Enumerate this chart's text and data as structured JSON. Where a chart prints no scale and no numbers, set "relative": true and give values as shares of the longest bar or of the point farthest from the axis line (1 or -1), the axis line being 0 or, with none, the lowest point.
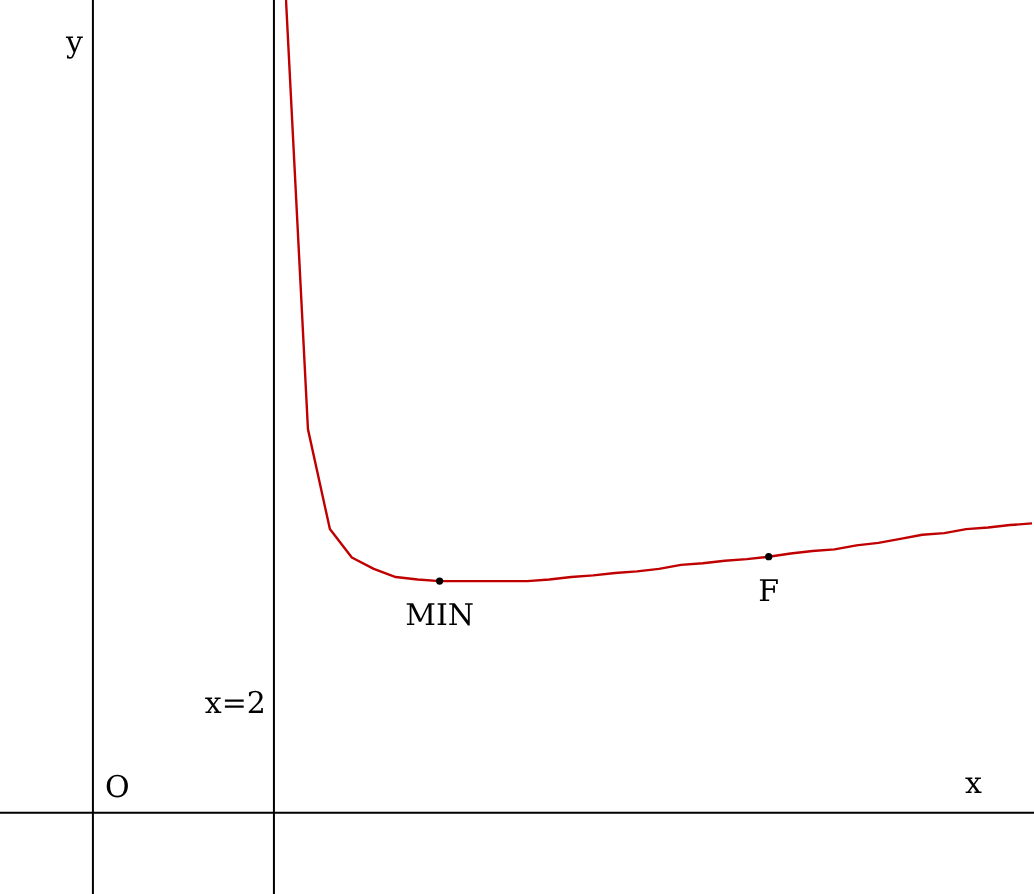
{
  "chart_data": {
    "type": "line",
    "relative": true,
    "xlabel": "x",
    "tick_labels": false,
    "categories": [
      null,
      null,
      null,
      null,
      null,
      null,
      null,
      null,
      null,
      null,
      null,
      null,
      null,
      null,
      null,
      null,
      null,
      null,
      null,
      null,
      null,
      null,
      null,
      null,
      null,
      null,
      null,
      null,
      null,
      null,
      null,
      null,
      null,
      null,
      null
    ],
    "series": [
      {
        "color": "#c00000",
        "values": [
          1,
          0.472,
          0.349,
          0.314,
          0.3,
          0.29,
          0.287,
          0.285,
          0.285,
          0.285,
          0.285,
          0.285,
          0.287,
          0.29,
          0.292,
          0.295,
          0.297,
          0.3,
          0.305,
          0.307,
          0.31,
          0.312,
          0.315,
          0.319,
          0.322,
          0.324,
          0.329,
          0.332,
          0.337,
          0.342,
          0.344,
          0.349,
          0.351,
          0.354,
          0.356
        ]
      }
    ],
    "annotations": [
      "O",
      "x=2",
      "y",
      {
        "text": "MIN",
        "y": 0.285
      },
      {
        "text": "F",
        "y": 0.315
      }
    ]
  }
}
